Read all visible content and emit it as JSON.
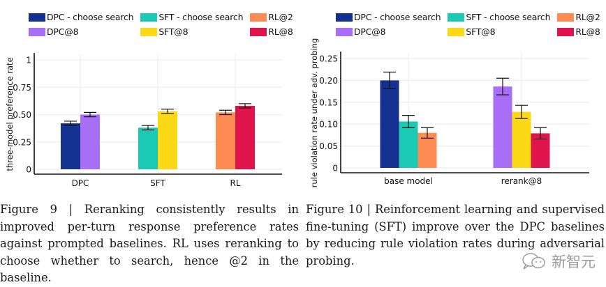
{
  "chart_data": [
    {
      "type": "bar",
      "title": "",
      "xlabel": "",
      "ylabel": "three-model preference rate",
      "ylim": [
        0,
        1
      ],
      "yticks": [
        0,
        0.25,
        0.5,
        0.75,
        1
      ],
      "ytick_labels": [
        "0",
        "0.25",
        "0.50",
        "0.75",
        "1"
      ],
      "grid": true,
      "legend_position": "top",
      "categories": [
        "DPC",
        "SFT",
        "RL"
      ],
      "bars": [
        {
          "category": "DPC",
          "series": "DPC - choose search",
          "value": 0.42,
          "error": 0.02,
          "color": "#14318f"
        },
        {
          "category": "DPC",
          "series": "DPC@8",
          "value": 0.5,
          "error": 0.02,
          "color": "#a86ef5"
        },
        {
          "category": "SFT",
          "series": "SFT - choose search",
          "value": 0.38,
          "error": 0.02,
          "color": "#1cc9b5"
        },
        {
          "category": "SFT",
          "series": "SFT@8",
          "value": 0.53,
          "error": 0.02,
          "color": "#fcd916"
        },
        {
          "category": "RL",
          "series": "RL@2",
          "value": 0.52,
          "error": 0.02,
          "color": "#fd8b52"
        },
        {
          "category": "RL",
          "series": "RL@8",
          "value": 0.58,
          "error": 0.02,
          "color": "#e0144d"
        }
      ],
      "legend": [
        {
          "label": "DPC - choose search",
          "color": "#14318f"
        },
        {
          "label": "SFT - choose search",
          "color": "#1cc9b5"
        },
        {
          "label": "RL@2",
          "color": "#fd8b52"
        },
        {
          "label": "DPC@8",
          "color": "#a86ef5"
        },
        {
          "label": "SFT@8",
          "color": "#fcd916"
        },
        {
          "label": "RL@8",
          "color": "#e0144d"
        }
      ]
    },
    {
      "type": "bar",
      "title": "",
      "xlabel": "",
      "ylabel": "rule violation rate under adv. probing",
      "ylim": [
        0,
        0.25
      ],
      "yticks": [
        0,
        0.05,
        0.1,
        0.15,
        0.2,
        0.25
      ],
      "ytick_labels": [
        "0",
        "0.05",
        "0.10",
        "0.15",
        "0.20",
        "0.25"
      ],
      "grid": true,
      "legend_position": "top",
      "categories": [
        "base model",
        "rerank@8"
      ],
      "bars": [
        {
          "category": "base model",
          "series": "DPC - choose search",
          "value": 0.2,
          "error": 0.019,
          "color": "#14318f"
        },
        {
          "category": "base model",
          "series": "SFT - choose search",
          "value": 0.106,
          "error": 0.014,
          "color": "#1cc9b5"
        },
        {
          "category": "base model",
          "series": "RL@2",
          "value": 0.08,
          "error": 0.012,
          "color": "#fd8b52"
        },
        {
          "category": "rerank@8",
          "series": "DPC@8",
          "value": 0.186,
          "error": 0.019,
          "color": "#a86ef5"
        },
        {
          "category": "rerank@8",
          "series": "SFT@8",
          "value": 0.128,
          "error": 0.015,
          "color": "#fcd916"
        },
        {
          "category": "rerank@8",
          "series": "RL@8",
          "value": 0.079,
          "error": 0.013,
          "color": "#e0144d"
        }
      ],
      "legend": [
        {
          "label": "DPC - choose search",
          "color": "#14318f"
        },
        {
          "label": "SFT - choose search",
          "color": "#1cc9b5"
        },
        {
          "label": "RL@2",
          "color": "#fd8b52"
        },
        {
          "label": "DPC@8",
          "color": "#a86ef5"
        },
        {
          "label": "SFT@8",
          "color": "#fcd916"
        },
        {
          "label": "RL@8",
          "color": "#e0144d"
        }
      ]
    }
  ],
  "captions": {
    "left": "Figure 9 | Reranking consistently results in improved per-turn response preference rates against prompted baselines. RL uses reranking to choose whether to search, hence @2 in the baseline.",
    "right": "Figure 10 | Reinforcement learning and supervised fine-tuning (SFT) improve over the DPC baselines by reducing rule violation rates during adversarial probing."
  },
  "watermark": {
    "icon": "wechat-icon",
    "text": "新智元"
  }
}
